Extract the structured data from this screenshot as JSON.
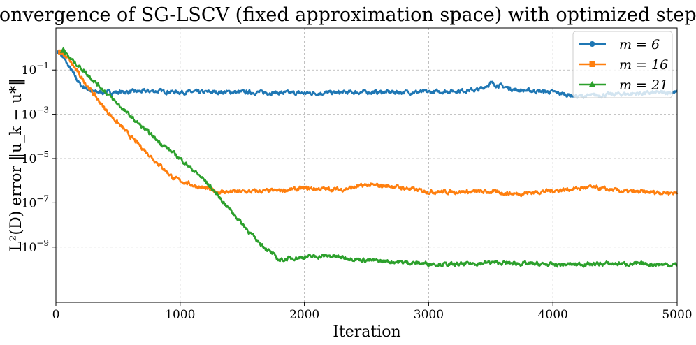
{
  "chart_data": {
    "type": "line",
    "title": "Convergence of SG-LSCV (fixed approximation space) with optimized step sizes",
    "xlabel": "Iteration",
    "ylabel": "L²(D) error ‖u_k − u*‖",
    "xlim": [
      0,
      5000
    ],
    "ylim_log10": [
      -11.5,
      0.9
    ],
    "yscale": "log",
    "grid": true,
    "legend_position": "top-right",
    "x_ticks": [
      0,
      1000,
      2000,
      3000,
      4000,
      5000
    ],
    "x_tick_labels": [
      "0",
      "1000",
      "2000",
      "3000",
      "4000",
      "5000"
    ],
    "y_ticks_log10": [
      -1,
      -3,
      -5,
      -7,
      -9
    ],
    "y_tick_labels": [
      {
        "base": "10",
        "exp": "−1"
      },
      {
        "base": "10",
        "exp": "−3"
      },
      {
        "base": "10",
        "exp": "−5"
      },
      {
        "base": "10",
        "exp": "−7"
      },
      {
        "base": "10",
        "exp": "−9"
      }
    ],
    "series": [
      {
        "name": "m = 6",
        "legend_label": "m = 6",
        "color": "#1f77b4",
        "marker": "circle",
        "x": [
          30,
          100,
          200,
          300,
          500,
          800,
          1000,
          1500,
          2000,
          2500,
          3000,
          3400,
          3500,
          3700,
          4000,
          4200,
          4500,
          5000
        ],
        "log10_y": [
          -0.2,
          -0.8,
          -1.7,
          -2.0,
          -2.0,
          -1.95,
          -2.0,
          -2.0,
          -2.05,
          -2.0,
          -2.0,
          -1.9,
          -1.6,
          -1.9,
          -2.0,
          -2.2,
          -2.1,
          -2.0
        ]
      },
      {
        "name": "m = 16",
        "legend_label": "m = 16",
        "color": "#ff7f0e",
        "marker": "square",
        "x": [
          40,
          100,
          200,
          400,
          600,
          800,
          950,
          1100,
          1300,
          1500,
          1800,
          2000,
          2300,
          2500,
          2700,
          3000,
          3500,
          3700,
          4000,
          4300,
          4600,
          5000
        ],
        "log10_y": [
          -0.2,
          -0.5,
          -1.3,
          -2.8,
          -4.0,
          -5.1,
          -5.9,
          -6.2,
          -6.5,
          -6.5,
          -6.45,
          -6.35,
          -6.4,
          -6.2,
          -6.25,
          -6.5,
          -6.5,
          -6.6,
          -6.45,
          -6.3,
          -6.5,
          -6.55
        ]
      },
      {
        "name": "m = 21",
        "legend_label": "m = 21",
        "color": "#2ca02c",
        "marker": "triangle",
        "x": [
          60,
          100,
          200,
          400,
          600,
          800,
          1000,
          1200,
          1400,
          1600,
          1800,
          1900,
          2000,
          2200,
          2500,
          3000,
          3200,
          3500,
          4000,
          4500,
          5000
        ],
        "log10_y": [
          -0.1,
          -0.4,
          -0.9,
          -2.0,
          -3.1,
          -4.1,
          -5.0,
          -6.0,
          -7.3,
          -8.6,
          -9.6,
          -9.5,
          -9.45,
          -9.4,
          -9.6,
          -9.75,
          -9.8,
          -9.7,
          -9.8,
          -9.75,
          -9.8
        ]
      }
    ]
  }
}
